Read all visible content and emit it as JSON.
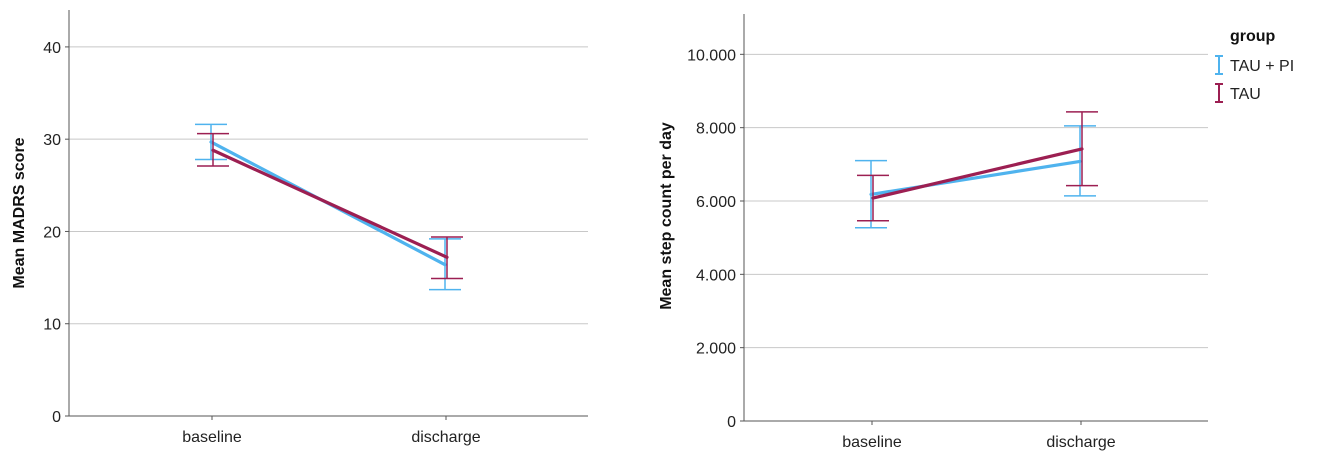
{
  "chart_data": [
    {
      "type": "line",
      "ylabel": "Mean MADRS score",
      "xlabel": "",
      "categories": [
        "baseline",
        "discharge"
      ],
      "ylim": [
        0,
        44
      ],
      "yticks": [
        0,
        10,
        20,
        30,
        40
      ],
      "ytick_labels": [
        "0",
        "10",
        "20",
        "30",
        "40"
      ],
      "grid": true,
      "series": [
        {
          "name": "TAU + PI",
          "color": "#4fb3ee",
          "values": [
            29.7,
            16.4
          ],
          "err_low": [
            27.8,
            13.7
          ],
          "err_high": [
            31.6,
            19.2
          ]
        },
        {
          "name": "TAU",
          "color": "#9c1f52",
          "values": [
            28.8,
            17.2
          ],
          "err_low": [
            27.1,
            14.9
          ],
          "err_high": [
            30.6,
            19.4
          ]
        }
      ]
    },
    {
      "type": "line",
      "ylabel": "Mean step count per day",
      "xlabel": "",
      "categories": [
        "baseline",
        "discharge"
      ],
      "ylim": [
        0,
        11100
      ],
      "yticks": [
        0,
        2000,
        4000,
        6000,
        8000,
        10000
      ],
      "ytick_labels": [
        "0",
        "2.000",
        "4.000",
        "6.000",
        "8.000",
        "10.000"
      ],
      "grid": true,
      "legend_title": "group",
      "legend_position": "top-right",
      "series": [
        {
          "name": "TAU + PI",
          "color": "#4fb3ee",
          "values": [
            6180,
            7080
          ],
          "err_low": [
            5270,
            6140
          ],
          "err_high": [
            7100,
            8050
          ]
        },
        {
          "name": "TAU",
          "color": "#9c1f52",
          "values": [
            6080,
            7420
          ],
          "err_low": [
            5460,
            6420
          ],
          "err_high": [
            6700,
            8430
          ]
        }
      ]
    }
  ]
}
